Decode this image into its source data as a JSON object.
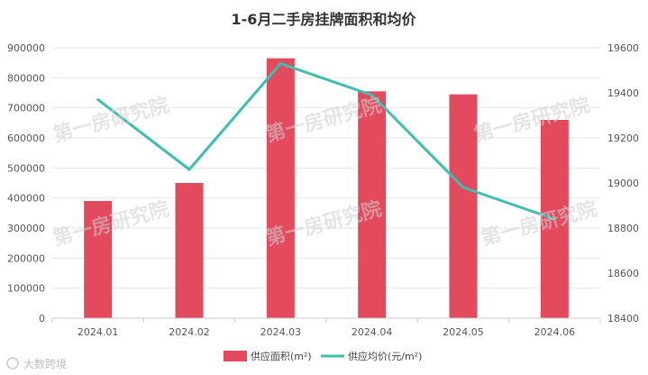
{
  "chart_data": {
    "type": "bar",
    "title": "1-6月二手房挂牌面积和均价",
    "categories": [
      "2024.01",
      "2024.02",
      "2024.03",
      "2024.04",
      "2024.05",
      "2024.06"
    ],
    "series": [
      {
        "name": "供应面积(m²)",
        "type": "bar",
        "axis": "left",
        "color": "#E34A5E",
        "values": [
          390000,
          450000,
          865000,
          755000,
          745000,
          660000
        ]
      },
      {
        "name": "供应均价(元/m²)",
        "type": "line",
        "axis": "right",
        "color": "#3DBFB0",
        "values": [
          19370,
          19060,
          19530,
          19390,
          18980,
          18840
        ]
      }
    ],
    "left_axis": {
      "ylim": [
        0,
        900000
      ],
      "ticks": [
        "0",
        "100000",
        "200000",
        "300000",
        "400000",
        "500000",
        "600000",
        "700000",
        "800000",
        "900000"
      ]
    },
    "right_axis": {
      "ylim": [
        18400,
        19600
      ],
      "ticks": [
        "18400",
        "18600",
        "18800",
        "19000",
        "19200",
        "19400",
        "19600"
      ]
    },
    "grid": true,
    "legend_position": "bottom-center"
  },
  "watermark": "第一房研究院",
  "corner_watermark": "大数跨境"
}
